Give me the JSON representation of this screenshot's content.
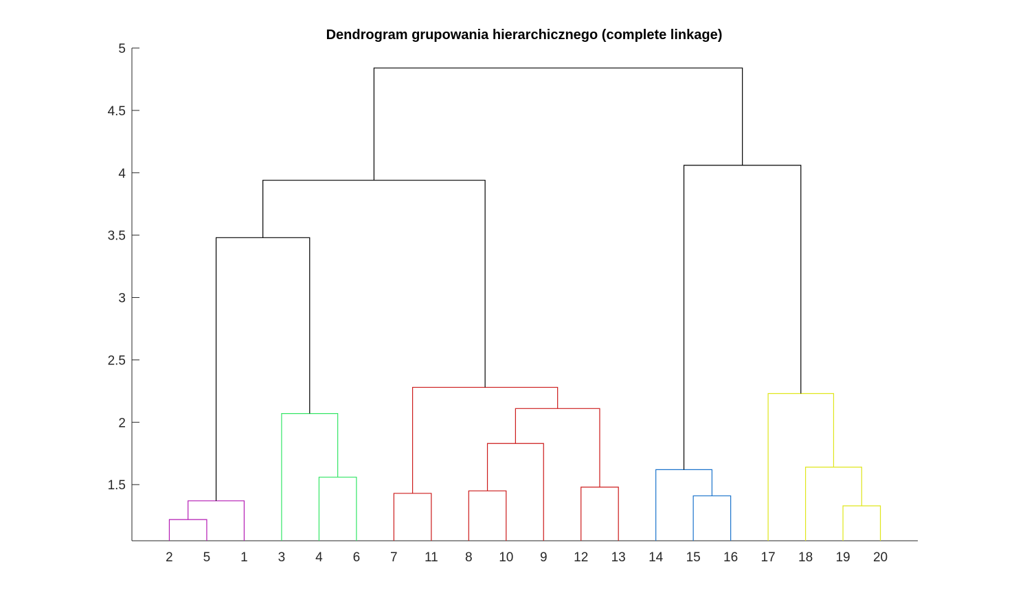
{
  "chart_data": {
    "type": "dendrogram",
    "title": "Dendrogram grupowania hierarchicznego (complete linkage)",
    "xlabel": "",
    "ylabel": "",
    "ylim": [
      1.05,
      5
    ],
    "yticks": [
      1.5,
      2,
      2.5,
      3,
      3.5,
      4,
      4.5,
      5
    ],
    "ytick_labels": [
      "1.5",
      "2",
      "2.5",
      "3",
      "3.5",
      "4",
      "4.5",
      "5"
    ],
    "leaf_order": [
      "2",
      "5",
      "1",
      "3",
      "4",
      "6",
      "7",
      "11",
      "8",
      "10",
      "9",
      "12",
      "13",
      "14",
      "15",
      "16",
      "17",
      "18",
      "19",
      "20"
    ],
    "grid": false,
    "colors": {
      "above_threshold": "#000000",
      "purple": "#b31ab3",
      "green": "#33e666",
      "red": "#cc1a1a",
      "blue": "#1a73cc",
      "yellow": "#dfe61a"
    },
    "merges": [
      {
        "id": "A",
        "left": "2",
        "right": "5",
        "height": 1.22,
        "color": "purple"
      },
      {
        "id": "B",
        "left": "A",
        "right": "1",
        "height": 1.37,
        "color": "purple"
      },
      {
        "id": "C",
        "left": "4",
        "right": "6",
        "height": 1.56,
        "color": "green"
      },
      {
        "id": "D",
        "left": "3",
        "right": "C",
        "height": 2.07,
        "color": "green"
      },
      {
        "id": "E",
        "left": "B",
        "right": "D",
        "height": 3.48,
        "color": "above_threshold"
      },
      {
        "id": "F",
        "left": "7",
        "right": "11",
        "height": 1.43,
        "color": "red"
      },
      {
        "id": "G",
        "left": "8",
        "right": "10",
        "height": 1.45,
        "color": "red"
      },
      {
        "id": "H",
        "left": "G",
        "right": "9",
        "height": 1.83,
        "color": "red"
      },
      {
        "id": "I",
        "left": "12",
        "right": "13",
        "height": 1.48,
        "color": "red"
      },
      {
        "id": "J",
        "left": "H",
        "right": "I",
        "height": 2.11,
        "color": "red"
      },
      {
        "id": "K",
        "left": "F",
        "right": "J",
        "height": 2.28,
        "color": "red"
      },
      {
        "id": "L",
        "left": "E",
        "right": "K",
        "height": 3.94,
        "color": "above_threshold"
      },
      {
        "id": "M",
        "left": "15",
        "right": "16",
        "height": 1.41,
        "color": "blue"
      },
      {
        "id": "N",
        "left": "14",
        "right": "M",
        "height": 1.62,
        "color": "blue"
      },
      {
        "id": "O",
        "left": "19",
        "right": "20",
        "height": 1.33,
        "color": "yellow"
      },
      {
        "id": "P",
        "left": "18",
        "right": "O",
        "height": 1.64,
        "color": "yellow"
      },
      {
        "id": "Q",
        "left": "17",
        "right": "P",
        "height": 2.23,
        "color": "yellow"
      },
      {
        "id": "R",
        "left": "N",
        "right": "Q",
        "height": 4.06,
        "color": "above_threshold"
      },
      {
        "id": "S",
        "left": "L",
        "right": "R",
        "height": 4.84,
        "color": "above_threshold"
      }
    ]
  }
}
